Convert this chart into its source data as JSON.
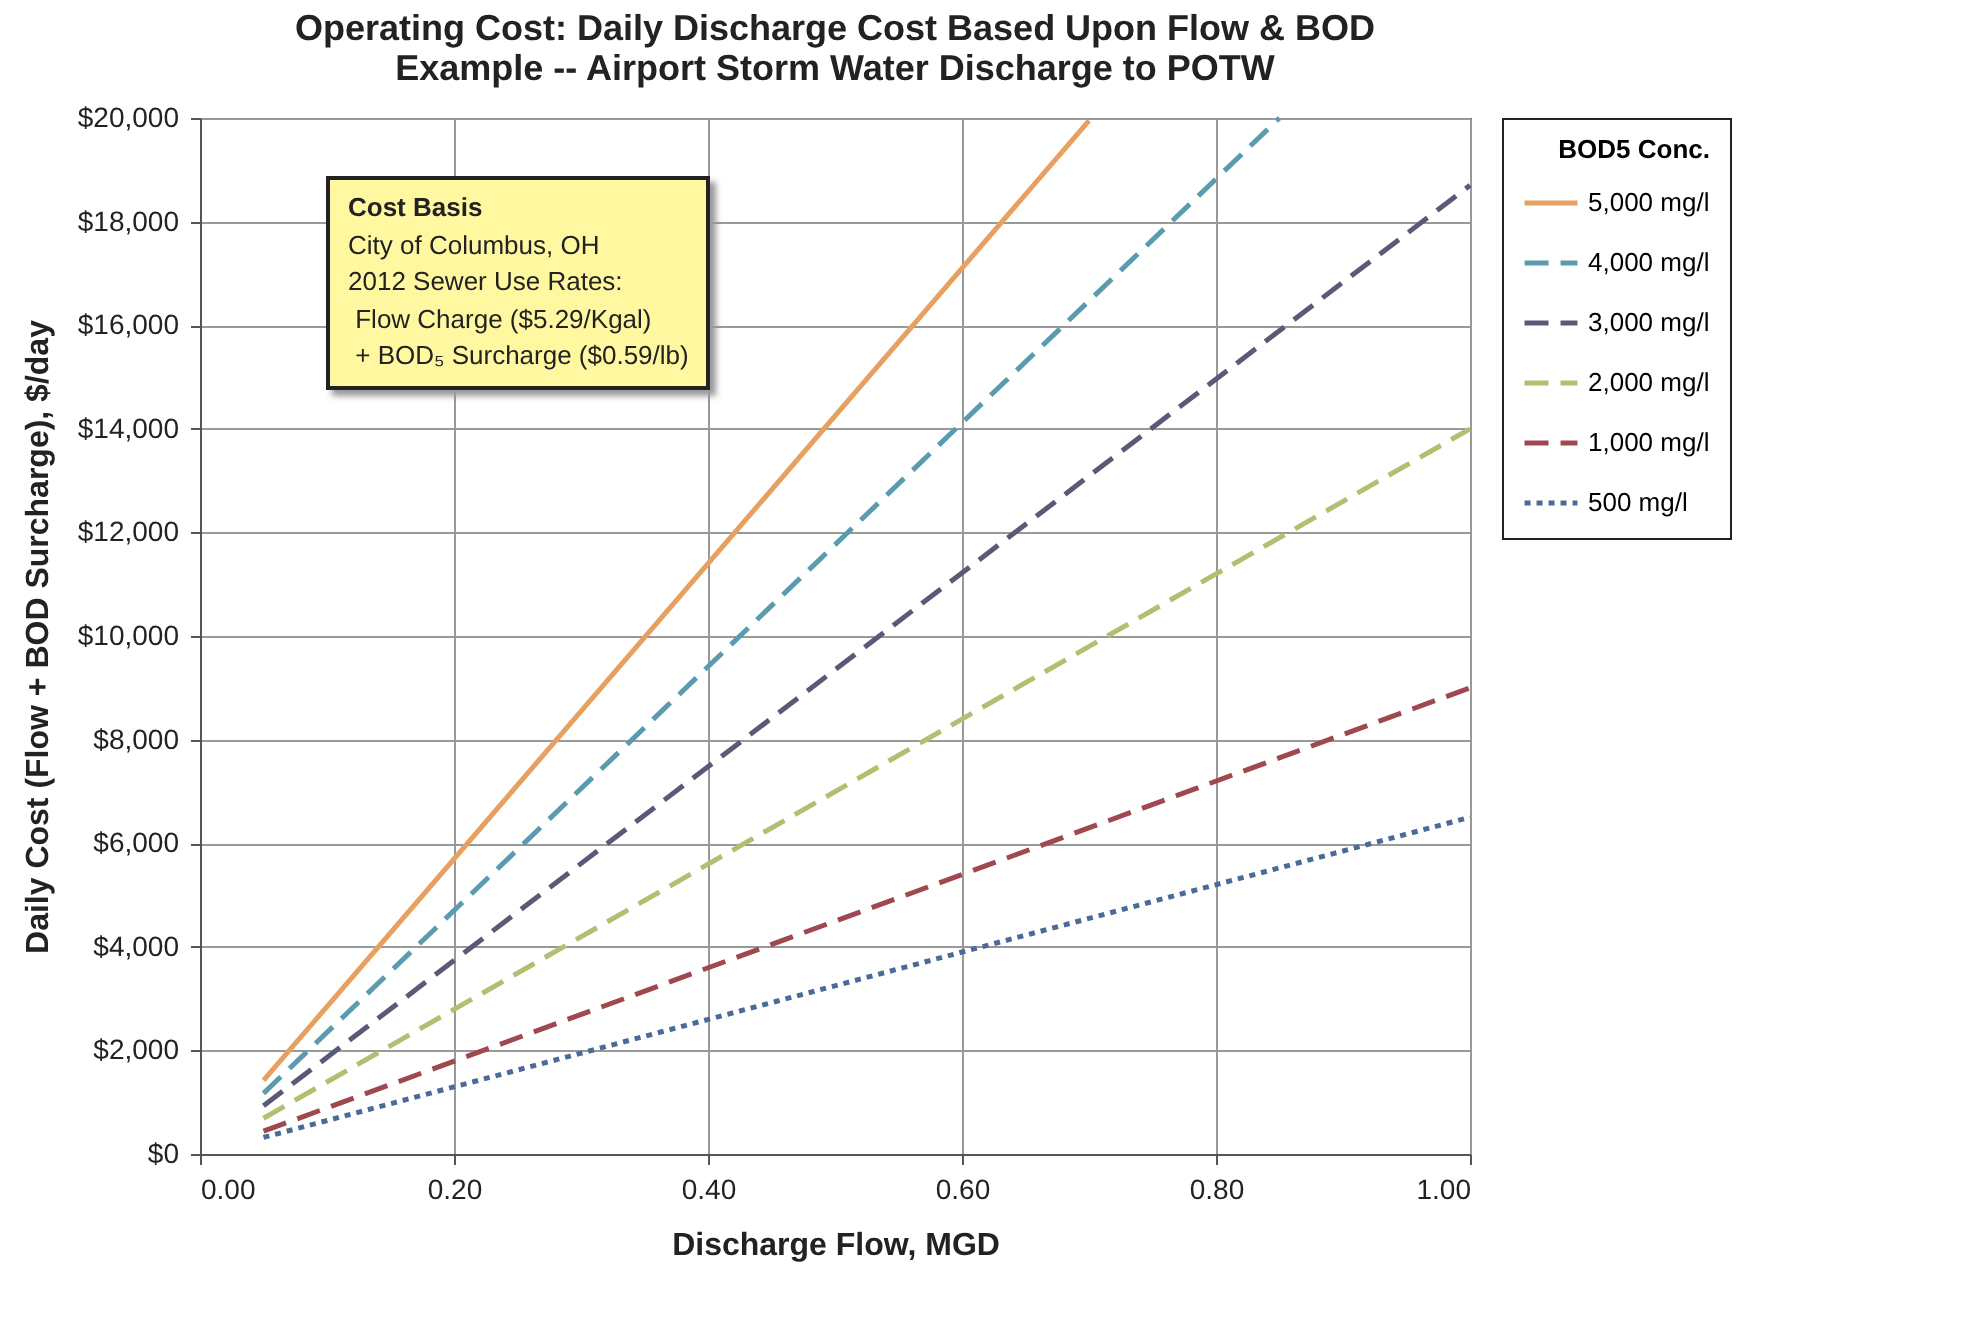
{
  "chart_data": {
    "type": "line",
    "title": "Operating Cost:  Daily Discharge Cost Based Upon Flow & BOD",
    "subtitle": "Example -- Airport Storm Water Discharge to POTW",
    "xlabel": "Discharge Flow, MGD",
    "ylabel": "Daily Cost (Flow + BOD Surcharge), $/day",
    "legend_title": "BOD5 Conc.",
    "annotations": [
      "Cost Basis",
      "City of Columbus, OH",
      "2012 Sewer Use Rates:",
      " Flow Charge ($5.29/Kgal)",
      " + BOD₅ Surcharge ($0.59/lb)"
    ],
    "series": [
      {
        "name": "5,000 mg/l",
        "color": "#e8a060",
        "line_style": "solid",
        "x": [
          0.05,
          0.7
        ],
        "values": [
          1420,
          19950
        ]
      },
      {
        "name": "4,000 mg/l",
        "color": "#5b9bb0",
        "line_style": "dashed",
        "x": [
          0.05,
          0.85
        ],
        "values": [
          1170,
          20000
        ]
      },
      {
        "name": "3,000 mg/l",
        "color": "#5a5a78",
        "line_style": "dashed",
        "x": [
          0.05,
          1.0
        ],
        "values": [
          930,
          18700
        ]
      },
      {
        "name": "2,000 mg/l",
        "color": "#b0c070",
        "line_style": "dashed",
        "x": [
          0.05,
          1.0
        ],
        "values": [
          690,
          14000
        ]
      },
      {
        "name": "1,000 mg/l",
        "color": "#a04850",
        "line_style": "dashed",
        "x": [
          0.05,
          1.0
        ],
        "values": [
          440,
          9000
        ]
      },
      {
        "name": "500 mg/l",
        "color": "#4a6a98",
        "line_style": "dotted",
        "x": [
          0.05,
          1.0
        ],
        "values": [
          320,
          6500
        ]
      }
    ],
    "xlim": [
      0,
      1
    ],
    "xticks": [
      {
        "value": 0,
        "label": "0.00"
      },
      {
        "value": 0.2,
        "label": "0.20"
      },
      {
        "value": 0.4,
        "label": "0.40"
      },
      {
        "value": 0.6,
        "label": "0.60"
      },
      {
        "value": 0.8,
        "label": "0.80"
      },
      {
        "value": 1,
        "label": "1.00"
      }
    ],
    "ylim": [
      0,
      20000
    ],
    "yticks": [
      {
        "value": 0,
        "label": "$0"
      },
      {
        "value": 2000,
        "label": "$2,000"
      },
      {
        "value": 4000,
        "label": "$4,000"
      },
      {
        "value": 6000,
        "label": "$6,000"
      },
      {
        "value": 8000,
        "label": "$8,000"
      },
      {
        "value": 10000,
        "label": "$10,000"
      },
      {
        "value": 12000,
        "label": "$12,000"
      },
      {
        "value": 14000,
        "label": "$14,000"
      },
      {
        "value": 16000,
        "label": "$16,000"
      },
      {
        "value": 18000,
        "label": "$18,000"
      },
      {
        "value": 20000,
        "label": "$20,000"
      }
    ],
    "grid": true,
    "legend": "right",
    "marker": "none"
  }
}
